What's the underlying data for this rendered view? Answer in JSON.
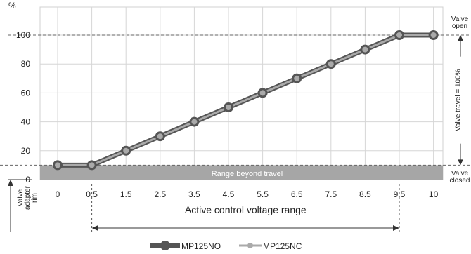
{
  "chart_data": {
    "type": "line",
    "ylabel": "%",
    "x_categories": [
      "0",
      "0.5",
      "1.5",
      "2.5",
      "3.5",
      "4.5",
      "5.5",
      "6.5",
      "7.5",
      "8.5",
      "9.5",
      "10"
    ],
    "ylim": [
      0,
      100
    ],
    "y_ticks": [
      "0",
      "20",
      "40",
      "60",
      "80",
      "100"
    ],
    "series": [
      {
        "name": "MP125NO",
        "color": "#555555",
        "values": [
          10,
          10,
          20,
          30,
          40,
          50,
          60,
          70,
          80,
          90,
          100,
          100
        ]
      },
      {
        "name": "MP125NC",
        "color": "#aaaaaa",
        "values": [
          10,
          10,
          20,
          30,
          40,
          50,
          60,
          70,
          80,
          90,
          100,
          100
        ]
      }
    ],
    "grid": true,
    "legend": "bottom-center",
    "band": {
      "label": "Range beyond travel",
      "from": 0,
      "to": 10,
      "color": "#a6a6a6"
    },
    "annotations": {
      "valve_open": "Valve open",
      "valve_closed": "Valve closed",
      "valve_travel": "Valve travel = 100%",
      "valve_adapter_rim": "Valve adapter rim",
      "active_range": "Active control voltage range"
    }
  }
}
